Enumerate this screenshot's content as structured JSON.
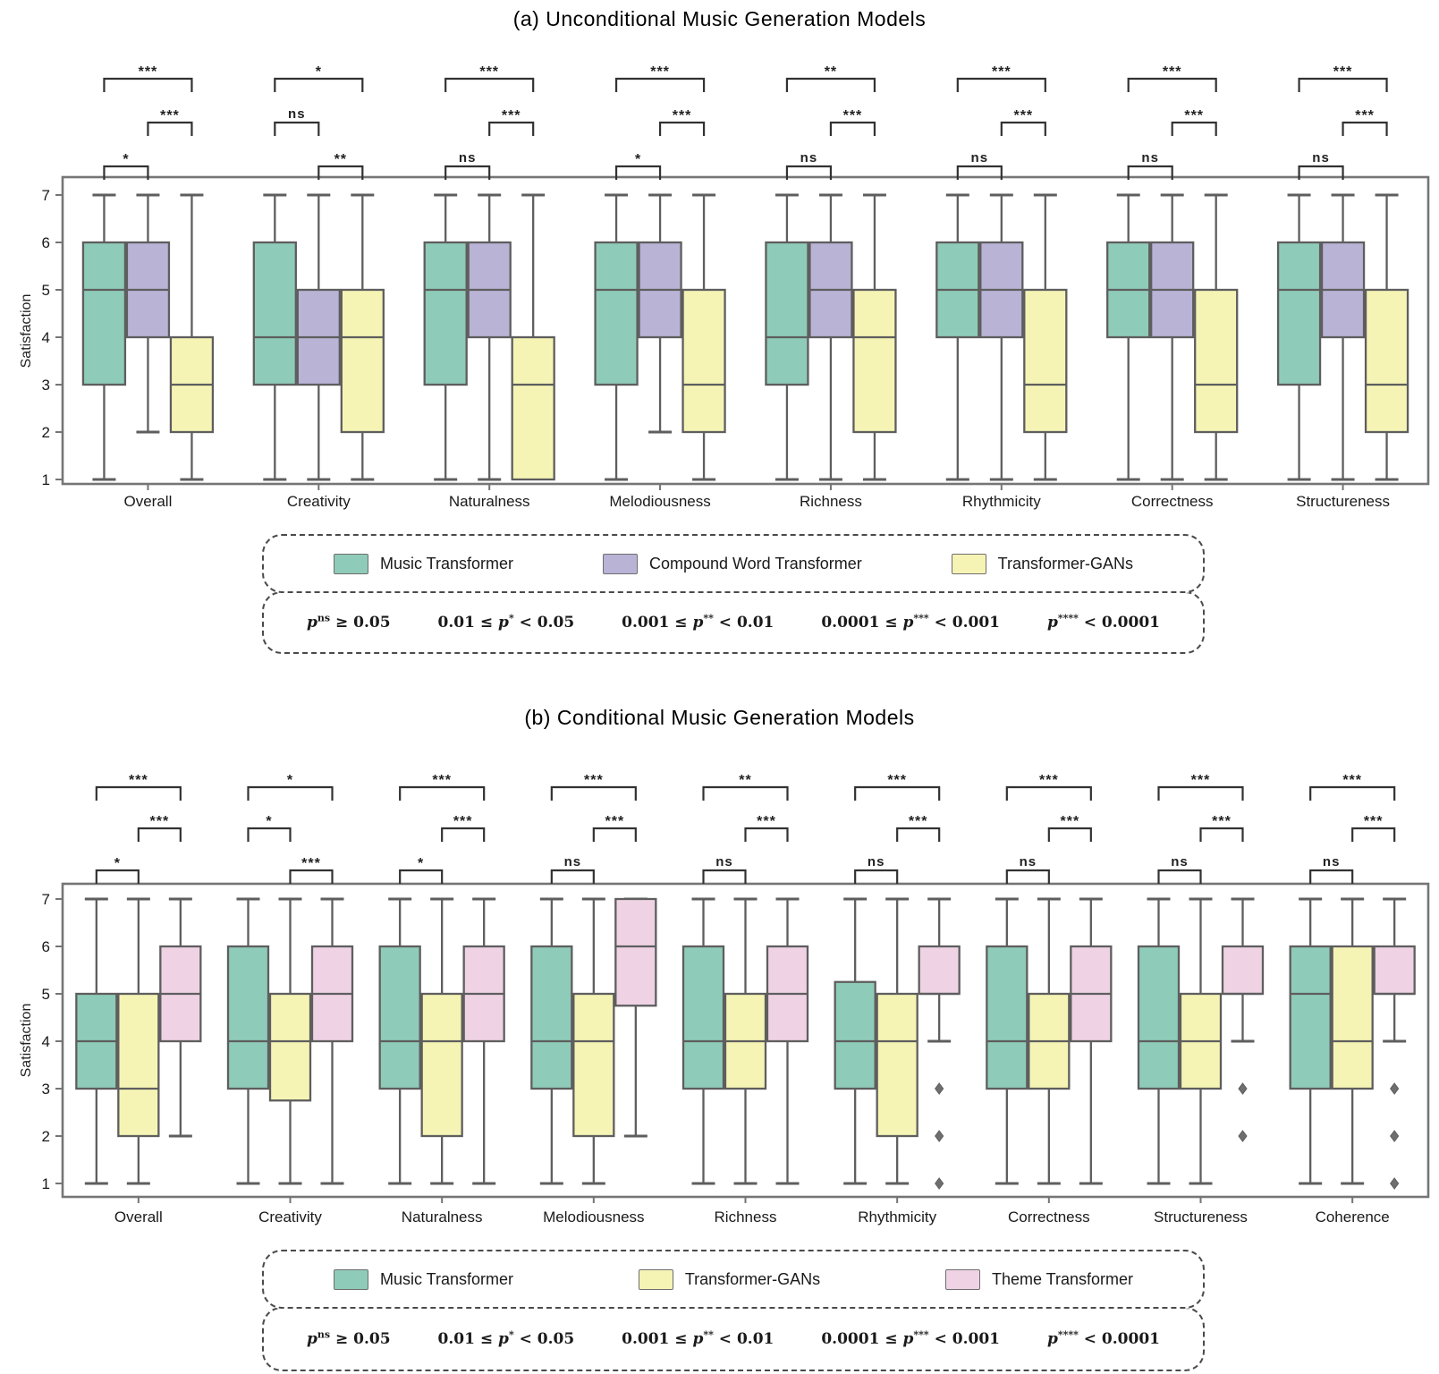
{
  "colors": {
    "teal": "#8FCBB9",
    "purple": "#B9B3D6",
    "yellow": "#F6F4B5",
    "pink": "#EFD3E5",
    "box_edge": "#5E5E5E",
    "axis": "#757575",
    "bracket": "#323232",
    "outlier": "#6E6E6E",
    "text": "#111111"
  },
  "significance_key": {
    "items": [
      {
        "lead": "",
        "p_sup": "ns",
        "tail": " ≥ 0.05"
      },
      {
        "lead": "0.01 ≤ ",
        "p_sup": "*",
        "tail": " < 0.05"
      },
      {
        "lead": "0.001 ≤ ",
        "p_sup": "**",
        "tail": " < 0.01"
      },
      {
        "lead": "0.0001 ≤ ",
        "p_sup": "***",
        "tail": " < 0.001"
      },
      {
        "lead": "",
        "p_sup": "****",
        "tail": " < 0.0001"
      }
    ]
  },
  "chart_data": [
    {
      "type": "box",
      "title": "(a) Unconditional Music Generation Models",
      "ylabel": "Satisfaction",
      "ylim": [
        1,
        7
      ],
      "yticks": [
        1,
        2,
        3,
        4,
        5,
        6,
        7
      ],
      "grid": false,
      "categories": [
        "Overall",
        "Creativity",
        "Naturalness",
        "Melodiousness",
        "Richness",
        "Rhythmicity",
        "Correctness",
        "Structureness"
      ],
      "series": [
        {
          "name": "Music Transformer",
          "color_key": "teal",
          "boxes": [
            {
              "whislo": 1,
              "q1": 3,
              "med": 5,
              "q3": 6,
              "whishi": 7,
              "fliers": []
            },
            {
              "whislo": 1,
              "q1": 3,
              "med": 4,
              "q3": 6,
              "whishi": 7,
              "fliers": []
            },
            {
              "whislo": 1,
              "q1": 3,
              "med": 5,
              "q3": 6,
              "whishi": 7,
              "fliers": []
            },
            {
              "whislo": 1,
              "q1": 3,
              "med": 5,
              "q3": 6,
              "whishi": 7,
              "fliers": []
            },
            {
              "whislo": 1,
              "q1": 3,
              "med": 4,
              "q3": 6,
              "whishi": 7,
              "fliers": []
            },
            {
              "whislo": 1,
              "q1": 4,
              "med": 5,
              "q3": 6,
              "whishi": 7,
              "fliers": []
            },
            {
              "whislo": 1,
              "q1": 4,
              "med": 5,
              "q3": 6,
              "whishi": 7,
              "fliers": []
            },
            {
              "whislo": 1,
              "q1": 3,
              "med": 5,
              "q3": 6,
              "whishi": 7,
              "fliers": []
            }
          ]
        },
        {
          "name": "Compound Word Transformer",
          "color_key": "purple",
          "boxes": [
            {
              "whislo": 2,
              "q1": 4,
              "med": 5,
              "q3": 6,
              "whishi": 7,
              "fliers": []
            },
            {
              "whislo": 1,
              "q1": 3,
              "med": 4,
              "q3": 5,
              "whishi": 7,
              "fliers": []
            },
            {
              "whislo": 1,
              "q1": 4,
              "med": 5,
              "q3": 6,
              "whishi": 7,
              "fliers": []
            },
            {
              "whislo": 2,
              "q1": 4,
              "med": 5,
              "q3": 6,
              "whishi": 7,
              "fliers": []
            },
            {
              "whislo": 1,
              "q1": 4,
              "med": 5,
              "q3": 6,
              "whishi": 7,
              "fliers": []
            },
            {
              "whislo": 1,
              "q1": 4,
              "med": 5,
              "q3": 6,
              "whishi": 7,
              "fliers": []
            },
            {
              "whislo": 1,
              "q1": 4,
              "med": 5,
              "q3": 6,
              "whishi": 7,
              "fliers": []
            },
            {
              "whislo": 1,
              "q1": 4,
              "med": 5,
              "q3": 6,
              "whishi": 7,
              "fliers": []
            }
          ]
        },
        {
          "name": "Transformer-GANs",
          "color_key": "yellow",
          "boxes": [
            {
              "whislo": 1,
              "q1": 2,
              "med": 3,
              "q3": 4,
              "whishi": 7,
              "fliers": []
            },
            {
              "whislo": 1,
              "q1": 2,
              "med": 4,
              "q3": 5,
              "whishi": 7,
              "fliers": []
            },
            {
              "whislo": 1,
              "q1": 1,
              "med": 3,
              "q3": 4,
              "whishi": 7,
              "fliers": []
            },
            {
              "whislo": 1,
              "q1": 2,
              "med": 3,
              "q3": 5,
              "whishi": 7,
              "fliers": []
            },
            {
              "whislo": 1,
              "q1": 2,
              "med": 4,
              "q3": 5,
              "whishi": 7,
              "fliers": []
            },
            {
              "whislo": 1,
              "q1": 2,
              "med": 3,
              "q3": 5,
              "whishi": 7,
              "fliers": []
            },
            {
              "whislo": 1,
              "q1": 2,
              "med": 3,
              "q3": 5,
              "whishi": 7,
              "fliers": []
            },
            {
              "whislo": 1,
              "q1": 2,
              "med": 3,
              "q3": 5,
              "whishi": 7,
              "fliers": []
            }
          ]
        }
      ],
      "significance": [
        {
          "top": "***",
          "mid": {
            "pair": "2-3",
            "label": "***"
          },
          "bottom": {
            "pair": "1-2",
            "label": "*"
          }
        },
        {
          "top": "*",
          "mid": {
            "pair": "1-2",
            "label": "ns"
          },
          "bottom": {
            "pair": "2-3",
            "label": "**"
          }
        },
        {
          "top": "***",
          "mid": {
            "pair": "2-3",
            "label": "***"
          },
          "bottom": {
            "pair": "1-2",
            "label": "ns"
          }
        },
        {
          "top": "***",
          "mid": {
            "pair": "2-3",
            "label": "***"
          },
          "bottom": {
            "pair": "1-2",
            "label": "*"
          }
        },
        {
          "top": "**",
          "mid": {
            "pair": "2-3",
            "label": "***"
          },
          "bottom": {
            "pair": "1-2",
            "label": "ns"
          }
        },
        {
          "top": "***",
          "mid": {
            "pair": "2-3",
            "label": "***"
          },
          "bottom": {
            "pair": "1-2",
            "label": "ns"
          }
        },
        {
          "top": "***",
          "mid": {
            "pair": "2-3",
            "label": "***"
          },
          "bottom": {
            "pair": "1-2",
            "label": "ns"
          }
        },
        {
          "top": "***",
          "mid": {
            "pair": "2-3",
            "label": "***"
          },
          "bottom": {
            "pair": "1-2",
            "label": "ns"
          }
        }
      ]
    },
    {
      "type": "box",
      "title": "(b) Conditional Music Generation Models",
      "ylabel": "Satisfaction",
      "ylim": [
        1,
        7
      ],
      "yticks": [
        1,
        2,
        3,
        4,
        5,
        6,
        7
      ],
      "grid": false,
      "categories": [
        "Overall",
        "Creativity",
        "Naturalness",
        "Melodiousness",
        "Richness",
        "Rhythmicity",
        "Correctness",
        "Structureness",
        "Coherence"
      ],
      "series": [
        {
          "name": "Music Transformer",
          "color_key": "teal",
          "boxes": [
            {
              "whislo": 1,
              "q1": 3,
              "med": 4,
              "q3": 5,
              "whishi": 7,
              "fliers": []
            },
            {
              "whislo": 1,
              "q1": 3,
              "med": 4,
              "q3": 6,
              "whishi": 7,
              "fliers": []
            },
            {
              "whislo": 1,
              "q1": 3,
              "med": 4,
              "q3": 6,
              "whishi": 7,
              "fliers": []
            },
            {
              "whislo": 1,
              "q1": 3,
              "med": 4,
              "q3": 6,
              "whishi": 7,
              "fliers": []
            },
            {
              "whislo": 1,
              "q1": 3,
              "med": 4,
              "q3": 6,
              "whishi": 7,
              "fliers": []
            },
            {
              "whislo": 1,
              "q1": 3,
              "med": 4,
              "q3": 5.25,
              "whishi": 7,
              "fliers": []
            },
            {
              "whislo": 1,
              "q1": 3,
              "med": 4,
              "q3": 6,
              "whishi": 7,
              "fliers": []
            },
            {
              "whislo": 1,
              "q1": 3,
              "med": 4,
              "q3": 6,
              "whishi": 7,
              "fliers": []
            },
            {
              "whislo": 1,
              "q1": 3,
              "med": 5,
              "q3": 6,
              "whishi": 7,
              "fliers": []
            }
          ]
        },
        {
          "name": "Transformer-GANs",
          "color_key": "yellow",
          "boxes": [
            {
              "whislo": 1,
              "q1": 2,
              "med": 3,
              "q3": 5,
              "whishi": 7,
              "fliers": []
            },
            {
              "whislo": 1,
              "q1": 2.75,
              "med": 4,
              "q3": 5,
              "whishi": 7,
              "fliers": []
            },
            {
              "whislo": 1,
              "q1": 2,
              "med": 4,
              "q3": 5,
              "whishi": 7,
              "fliers": []
            },
            {
              "whislo": 1,
              "q1": 2,
              "med": 4,
              "q3": 5,
              "whishi": 7,
              "fliers": []
            },
            {
              "whislo": 1,
              "q1": 3,
              "med": 4,
              "q3": 5,
              "whishi": 7,
              "fliers": []
            },
            {
              "whislo": 1,
              "q1": 2,
              "med": 4,
              "q3": 5,
              "whishi": 7,
              "fliers": []
            },
            {
              "whislo": 1,
              "q1": 3,
              "med": 4,
              "q3": 5,
              "whishi": 7,
              "fliers": []
            },
            {
              "whislo": 1,
              "q1": 3,
              "med": 4,
              "q3": 5,
              "whishi": 7,
              "fliers": []
            },
            {
              "whislo": 1,
              "q1": 3,
              "med": 4,
              "q3": 6,
              "whishi": 7,
              "fliers": []
            }
          ]
        },
        {
          "name": "Theme Transformer",
          "color_key": "pink",
          "boxes": [
            {
              "whislo": 2,
              "q1": 4,
              "med": 5,
              "q3": 6,
              "whishi": 7,
              "fliers": []
            },
            {
              "whislo": 1,
              "q1": 4,
              "med": 5,
              "q3": 6,
              "whishi": 7,
              "fliers": []
            },
            {
              "whislo": 1,
              "q1": 4,
              "med": 5,
              "q3": 6,
              "whishi": 7,
              "fliers": []
            },
            {
              "whislo": 2,
              "q1": 4.75,
              "med": 6,
              "q3": 7,
              "whishi": 7,
              "fliers": []
            },
            {
              "whislo": 1,
              "q1": 4,
              "med": 5,
              "q3": 6,
              "whishi": 7,
              "fliers": []
            },
            {
              "whislo": 4,
              "q1": 5,
              "med": 5,
              "q3": 6,
              "whishi": 7,
              "fliers": [
                3,
                2,
                1
              ]
            },
            {
              "whislo": 1,
              "q1": 4,
              "med": 5,
              "q3": 6,
              "whishi": 7,
              "fliers": []
            },
            {
              "whislo": 4,
              "q1": 5,
              "med": 5,
              "q3": 6,
              "whishi": 7,
              "fliers": [
                3,
                2
              ]
            },
            {
              "whislo": 4,
              "q1": 5,
              "med": 5,
              "q3": 6,
              "whishi": 7,
              "fliers": [
                3,
                2,
                1
              ]
            }
          ]
        }
      ],
      "significance": [
        {
          "top": "***",
          "mid": {
            "pair": "2-3",
            "label": "***"
          },
          "bottom": {
            "pair": "1-2",
            "label": "*"
          }
        },
        {
          "top": "*",
          "mid": {
            "pair": "1-2",
            "label": "*"
          },
          "bottom": {
            "pair": "2-3",
            "label": "***"
          }
        },
        {
          "top": "***",
          "mid": {
            "pair": "2-3",
            "label": "***"
          },
          "bottom": {
            "pair": "1-2",
            "label": "*"
          }
        },
        {
          "top": "***",
          "mid": {
            "pair": "2-3",
            "label": "***"
          },
          "bottom": {
            "pair": "1-2",
            "label": "ns"
          }
        },
        {
          "top": "**",
          "mid": {
            "pair": "2-3",
            "label": "***"
          },
          "bottom": {
            "pair": "1-2",
            "label": "ns"
          }
        },
        {
          "top": "***",
          "mid": {
            "pair": "2-3",
            "label": "***"
          },
          "bottom": {
            "pair": "1-2",
            "label": "ns"
          }
        },
        {
          "top": "***",
          "mid": {
            "pair": "2-3",
            "label": "***"
          },
          "bottom": {
            "pair": "1-2",
            "label": "ns"
          }
        },
        {
          "top": "***",
          "mid": {
            "pair": "2-3",
            "label": "***"
          },
          "bottom": {
            "pair": "1-2",
            "label": "ns"
          }
        },
        {
          "top": "***",
          "mid": {
            "pair": "2-3",
            "label": "***"
          },
          "bottom": {
            "pair": "1-2",
            "label": "ns"
          }
        }
      ]
    }
  ]
}
